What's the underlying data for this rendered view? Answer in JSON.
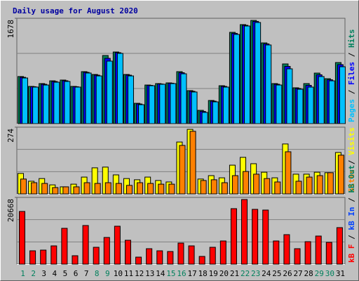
{
  "title": "Daily usage for August 2020",
  "legend_separator": " / ",
  "chart_data": [
    {
      "type": "bar",
      "ylim": [
        0,
        1678
      ],
      "yticks": [
        1678
      ],
      "series": [
        {
          "name": "Pages",
          "color": "#00c0ff",
          "values": [
            727,
            582,
            615,
            660,
            672,
            582,
            806,
            760,
            996,
            1119,
            760,
            302,
            604,
            627,
            638,
            794,
            504,
            179,
            347,
            582,
            1421,
            1555,
            1611,
            1253,
            615,
            873,
            548,
            582,
            750,
            682,
            906
          ]
        },
        {
          "name": "Files",
          "color": "#0000ff",
          "values": [
            738,
            588,
            627,
            671,
            683,
            588,
            817,
            772,
            1040,
            1130,
            772,
            313,
            610,
            632,
            644,
            811,
            515,
            195,
            358,
            593,
            1438,
            1566,
            1628,
            1270,
            627,
            912,
            560,
            610,
            778,
            699,
            940
          ]
        },
        {
          "name": "Hits",
          "color": "#00805c",
          "values": [
            750,
            593,
            638,
            682,
            694,
            593,
            828,
            783,
            1085,
            1141,
            783,
            324,
            615,
            638,
            649,
            828,
            526,
            212,
            369,
            604,
            1454,
            1577,
            1644,
            1286,
            638,
            951,
            571,
            638,
            805,
            716,
            973
          ]
        }
      ]
    },
    {
      "type": "bar",
      "ylim": [
        0,
        274
      ],
      "yticks": [
        274
      ],
      "series": [
        {
          "name": "Sites",
          "color": "#ff8000",
          "values": [
            61,
            46,
            43,
            26,
            29,
            29,
            46,
            43,
            46,
            43,
            35,
            46,
            43,
            40,
            40,
            199,
            257,
            55,
            58,
            46,
            75,
            92,
            81,
            63,
            49,
            173,
            52,
            69,
            75,
            87,
            159
          ]
        },
        {
          "name": "Visits",
          "color": "#ffff00",
          "values": [
            84,
            52,
            63,
            37,
            29,
            40,
            69,
            107,
            110,
            78,
            63,
            58,
            69,
            55,
            49,
            213,
            265,
            61,
            75,
            66,
            118,
            150,
            124,
            89,
            66,
            205,
            81,
            81,
            89,
            87,
            170
          ]
        }
      ]
    },
    {
      "type": "bar",
      "ylim": [
        0,
        20668
      ],
      "yticks": [
        20668
      ],
      "categories": [
        "1",
        "2",
        "3",
        "4",
        "5",
        "6",
        "7",
        "8",
        "9",
        "10",
        "11",
        "12",
        "13",
        "14",
        "15",
        "16",
        "17",
        "18",
        "19",
        "20",
        "21",
        "22",
        "23",
        "24",
        "25",
        "26",
        "27",
        "28",
        "29",
        "30",
        "31"
      ],
      "category_colors": [
        "#00805c",
        "#00805c",
        "#000000",
        "#000000",
        "#000000",
        "#000000",
        "#000000",
        "#00805c",
        "#00805c",
        "#000000",
        "#000000",
        "#000000",
        "#000000",
        "#000000",
        "#00805c",
        "#00805c",
        "#000000",
        "#000000",
        "#000000",
        "#000000",
        "#000000",
        "#00805c",
        "#00805c",
        "#000000",
        "#000000",
        "#000000",
        "#000000",
        "#000000",
        "#00805c",
        "#00805c",
        "#000000"
      ],
      "series": [
        {
          "name": "kB F",
          "color": "#ff0000",
          "values": [
            16317,
            4134,
            4351,
            5657,
            11095,
            2610,
            11965,
            5221,
            8267,
            11748,
            7397,
            2176,
            4786,
            4134,
            3916,
            6527,
            5657,
            2393,
            5221,
            7179,
            17186,
            20015,
            16969,
            16752,
            7179,
            9137,
            4786,
            6962,
            8702,
            6744,
            11313
          ]
        },
        {
          "name": "kB In",
          "color": "#0040ff",
          "values": [
            0,
            0,
            0,
            0,
            0,
            0,
            0,
            0,
            0,
            0,
            0,
            0,
            0,
            0,
            0,
            0,
            0,
            0,
            0,
            0,
            0,
            0,
            0,
            0,
            0,
            0,
            0,
            0,
            0,
            0,
            0
          ]
        },
        {
          "name": "kB Out",
          "color": "#00805c",
          "values": [
            0,
            0,
            0,
            0,
            0,
            0,
            0,
            0,
            0,
            0,
            0,
            0,
            0,
            0,
            0,
            0,
            0,
            0,
            0,
            0,
            0,
            0,
            0,
            0,
            0,
            0,
            0,
            0,
            0,
            0,
            0
          ]
        }
      ]
    }
  ]
}
